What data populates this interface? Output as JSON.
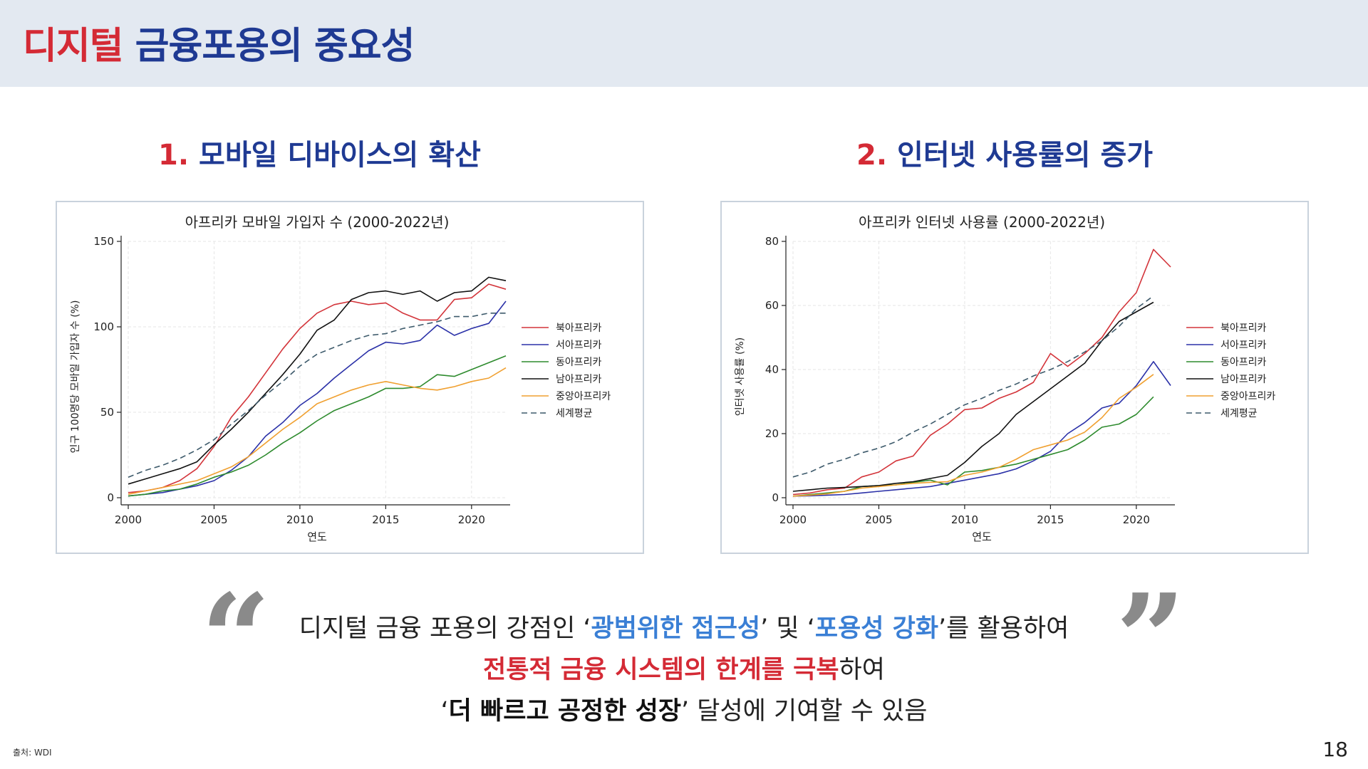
{
  "header": {
    "title_red": "디지털",
    "title_blue": "금융포용의 중요성"
  },
  "sections": [
    {
      "num": "1.",
      "title": "모바일 디바이스의 확산"
    },
    {
      "num": "2.",
      "title": "인터넷 사용률의 증가"
    }
  ],
  "colors": {
    "북아프리카": "#d3343a",
    "서아프리카": "#2b31a8",
    "동아프리카": "#2e8b2e",
    "남아프리카": "#111111",
    "중앙아프리카": "#f0a030",
    "세계평균": "#3d5a6b"
  },
  "chart_data": [
    {
      "type": "line",
      "title": "아프리카 모바일 가입자 수 (2000-2022년)",
      "xlabel": "연도",
      "ylabel": "인구 100명당 모바일 가입자 수 (%)",
      "xlim": [
        2000,
        2022
      ],
      "ylim": [
        0,
        150
      ],
      "xticks": [
        2000,
        2005,
        2010,
        2015,
        2020
      ],
      "yticks": [
        0,
        50,
        100,
        150
      ],
      "legend_position": "right",
      "x": [
        2000,
        2001,
        2002,
        2003,
        2004,
        2005,
        2006,
        2007,
        2008,
        2009,
        2010,
        2011,
        2012,
        2013,
        2014,
        2015,
        2016,
        2017,
        2018,
        2019,
        2020,
        2021,
        2022
      ],
      "series": [
        {
          "name": "북아프리카",
          "values": [
            3,
            4,
            6,
            10,
            17,
            30,
            47,
            59,
            73,
            87,
            99,
            108,
            113,
            115,
            113,
            114,
            108,
            104,
            104,
            116,
            117,
            125,
            122
          ]
        },
        {
          "name": "서아프리카",
          "values": [
            1,
            2,
            3,
            5,
            7,
            10,
            16,
            24,
            36,
            44,
            54,
            61,
            70,
            78,
            86,
            91,
            90,
            92,
            101,
            95,
            99,
            102,
            115
          ]
        },
        {
          "name": "동아프리카",
          "values": [
            1,
            2,
            4,
            5,
            8,
            12,
            15,
            19,
            25,
            32,
            38,
            45,
            51,
            55,
            59,
            64,
            64,
            65,
            72,
            71,
            75,
            79,
            83
          ]
        },
        {
          "name": "남아프리카",
          "values": [
            8,
            11,
            14,
            17,
            21,
            31,
            40,
            50,
            61,
            72,
            84,
            98,
            104,
            116,
            120,
            121,
            119,
            121,
            115,
            120,
            121,
            129,
            127
          ]
        },
        {
          "name": "중앙아프리카",
          "values": [
            2,
            4,
            6,
            8,
            10,
            14,
            18,
            24,
            32,
            40,
            47,
            55,
            59,
            63,
            66,
            68,
            66,
            64,
            63,
            65,
            68,
            70,
            76
          ]
        },
        {
          "name": "세계평균",
          "dashed": true,
          "values": [
            12,
            16,
            19,
            23,
            28,
            34,
            43,
            51,
            60,
            68,
            77,
            84,
            88,
            92,
            95,
            96,
            99,
            101,
            103,
            106,
            106,
            108,
            108
          ]
        }
      ]
    },
    {
      "type": "line",
      "title": "아프리카 인터넷 사용률 (2000-2022년)",
      "xlabel": "연도",
      "ylabel": "인터넷 사용률 (%)",
      "xlim": [
        2000,
        2022
      ],
      "ylim": [
        0,
        80
      ],
      "xticks": [
        2000,
        2005,
        2010,
        2015,
        2020
      ],
      "yticks": [
        0,
        20,
        40,
        60,
        80
      ],
      "legend_position": "right",
      "x": [
        2000,
        2001,
        2002,
        2003,
        2004,
        2005,
        2006,
        2007,
        2008,
        2009,
        2010,
        2011,
        2012,
        2013,
        2014,
        2015,
        2016,
        2017,
        2018,
        2019,
        2020,
        2021,
        2022
      ],
      "series": [
        {
          "name": "북아프리카",
          "values": [
            1,
            1.5,
            2.5,
            3,
            6.5,
            8,
            11.5,
            13,
            19.5,
            23,
            27.5,
            28,
            31,
            33,
            36,
            45,
            41,
            45,
            50,
            58,
            64,
            77.5,
            72
          ]
        },
        {
          "name": "서아프리카",
          "values": [
            0.5,
            0.6,
            0.8,
            1,
            1.5,
            2,
            2.5,
            3,
            3.5,
            4.5,
            5.5,
            6.5,
            7.5,
            9,
            11.5,
            14.5,
            20,
            23.5,
            28,
            29.5,
            35,
            42.5,
            35
          ]
        },
        {
          "name": "동아프리카",
          "values": [
            0.5,
            1,
            1.5,
            2,
            3.5,
            3.8,
            4,
            4.8,
            5.5,
            4,
            8,
            8.5,
            9.5,
            10.5,
            12,
            13.5,
            15,
            18,
            22,
            23,
            26,
            31.5,
            null
          ]
        },
        {
          "name": "남아프리카",
          "values": [
            2,
            2.5,
            3,
            3.2,
            3.5,
            3.8,
            4.5,
            5,
            6,
            7,
            11,
            16,
            20,
            26,
            30,
            34,
            38,
            42,
            49,
            55,
            58,
            61,
            null
          ]
        },
        {
          "name": "중앙아프리카",
          "values": [
            0.5,
            0.8,
            1.2,
            2,
            3,
            3.5,
            4,
            4.5,
            4.8,
            5,
            7,
            8,
            9.5,
            12,
            15,
            16.5,
            18,
            20.5,
            25,
            31,
            34.5,
            38.5,
            null
          ]
        },
        {
          "name": "세계평균",
          "dashed": true,
          "values": [
            6.5,
            8,
            10.5,
            12,
            14,
            15.5,
            17.5,
            20.5,
            23,
            26,
            29,
            31,
            33.5,
            35.5,
            38,
            40,
            42.5,
            45.5,
            49,
            53.5,
            59,
            63,
            null
          ]
        }
      ]
    }
  ],
  "quote": {
    "line1_a": "디지털 금융 포용의 강점인 ‘",
    "line1_b": "광범위한 접근성",
    "line1_c": "’ 및 ‘",
    "line1_d": "포용성 강화",
    "line1_e": "’를 활용하여",
    "line2_a": "전통적 금융 시스템의 한계를 극복",
    "line2_b": "하여",
    "line3_a": "‘",
    "line3_b": "더 빠르고 공정한 성장",
    "line3_c": "’ 달성에 기여할 수 있음"
  },
  "footer": {
    "source": "출처: WDI",
    "page": "18"
  }
}
